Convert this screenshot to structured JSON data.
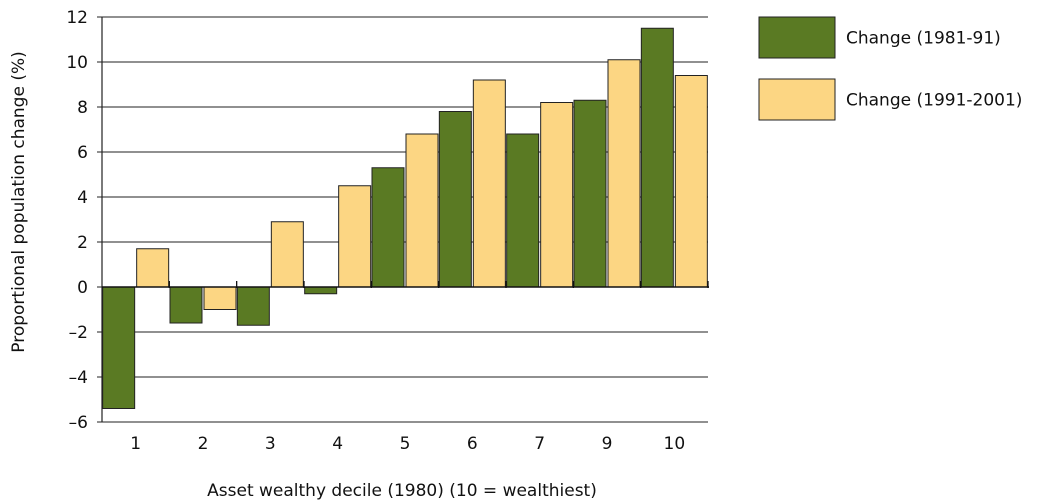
{
  "chart_data": {
    "type": "bar",
    "categories": [
      "1",
      "2",
      "3",
      "4",
      "5",
      "6",
      "7",
      "9",
      "10"
    ],
    "series": [
      {
        "name": "Change (1981-91)",
        "color": "#5a7a23",
        "values": [
          -5.4,
          -1.6,
          -1.7,
          -0.3,
          5.3,
          7.8,
          6.8,
          8.3,
          11.5
        ]
      },
      {
        "name": "Change (1991-2001)",
        "color": "#fcd683",
        "values": [
          1.7,
          -1.0,
          2.9,
          4.5,
          6.8,
          9.2,
          8.2,
          10.1,
          9.4
        ]
      }
    ],
    "xlabel": "Asset wealthy decile (1980) (10 = wealthiest)",
    "ylabel": "Proportional population change (%)",
    "ylim": [
      -6,
      12
    ],
    "yticks": [
      -6,
      -4,
      -2,
      0,
      2,
      4,
      6,
      8,
      10,
      12
    ],
    "ytick_labels": [
      "–6",
      "–4",
      "–2",
      "0",
      "2",
      "4",
      "6",
      "8",
      "10",
      "12"
    ],
    "grid": true,
    "legend_position": "top-right"
  }
}
